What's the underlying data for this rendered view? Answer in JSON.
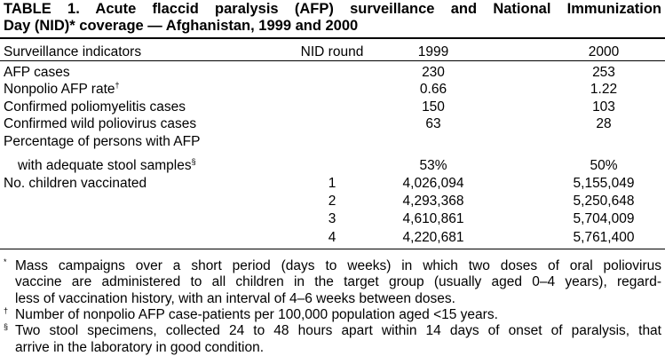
{
  "title": {
    "lines": [
      "TABLE 1. Acute flaccid paralysis (AFP) surveillance and National Immunization",
      "Day (NID)* coverage — Afghanistan, 1999 and 2000"
    ]
  },
  "table": {
    "header": [
      "Surveillance indicators",
      "NID round",
      "1999",
      "2000"
    ],
    "rows": [
      {
        "label": [
          "AFP cases"
        ],
        "v1999": "230",
        "v2000": "253"
      },
      {
        "label": [
          "Nonpolio AFP rate"
        ],
        "note": "†",
        "v1999": "0.66",
        "v2000": "1.22"
      },
      {
        "label": [
          "Confirmed poliomyelitis cases"
        ],
        "v1999": "150",
        "v2000": "103"
      },
      {
        "label": [
          "Confirmed wild poliovirus cases"
        ],
        "v1999": "63",
        "v2000": "28"
      },
      {
        "label": [
          "Percentage of persons with AFP",
          "with adequate stool samples"
        ],
        "note": "§",
        "v1999": "53%",
        "v2000": "50%"
      },
      {
        "label": [
          "No. children vaccinated"
        ],
        "round": "1",
        "v1999": "4,026,094",
        "v2000": "5,155,049"
      },
      {
        "round": "2",
        "v1999": "4,293,368",
        "v2000": "5,250,648"
      },
      {
        "round": "3",
        "v1999": "4,610,861",
        "v2000": "5,704,009"
      },
      {
        "round": "4",
        "v1999": "4,220,681",
        "v2000": "5,761,400"
      }
    ]
  },
  "footnotes": [
    {
      "mark": "*",
      "lines": [
        "Mass campaigns over a short period (days to weeks) in which two doses of oral poliovirus",
        "vaccine are administered to all children in the target group (usually aged 0–4 years), regard-",
        "less of vaccination history, with an interval of 4–6 weeks between doses."
      ]
    },
    {
      "mark": "†",
      "lines": [
        "Number of nonpolio AFP case-patients per 100,000 population aged <15 years."
      ]
    },
    {
      "mark": "§",
      "lines": [
        "Two stool specimens, collected 24 to 48 hours apart within 14 days of onset of paralysis, that",
        "arrive in the laboratory in good condition."
      ]
    }
  ]
}
